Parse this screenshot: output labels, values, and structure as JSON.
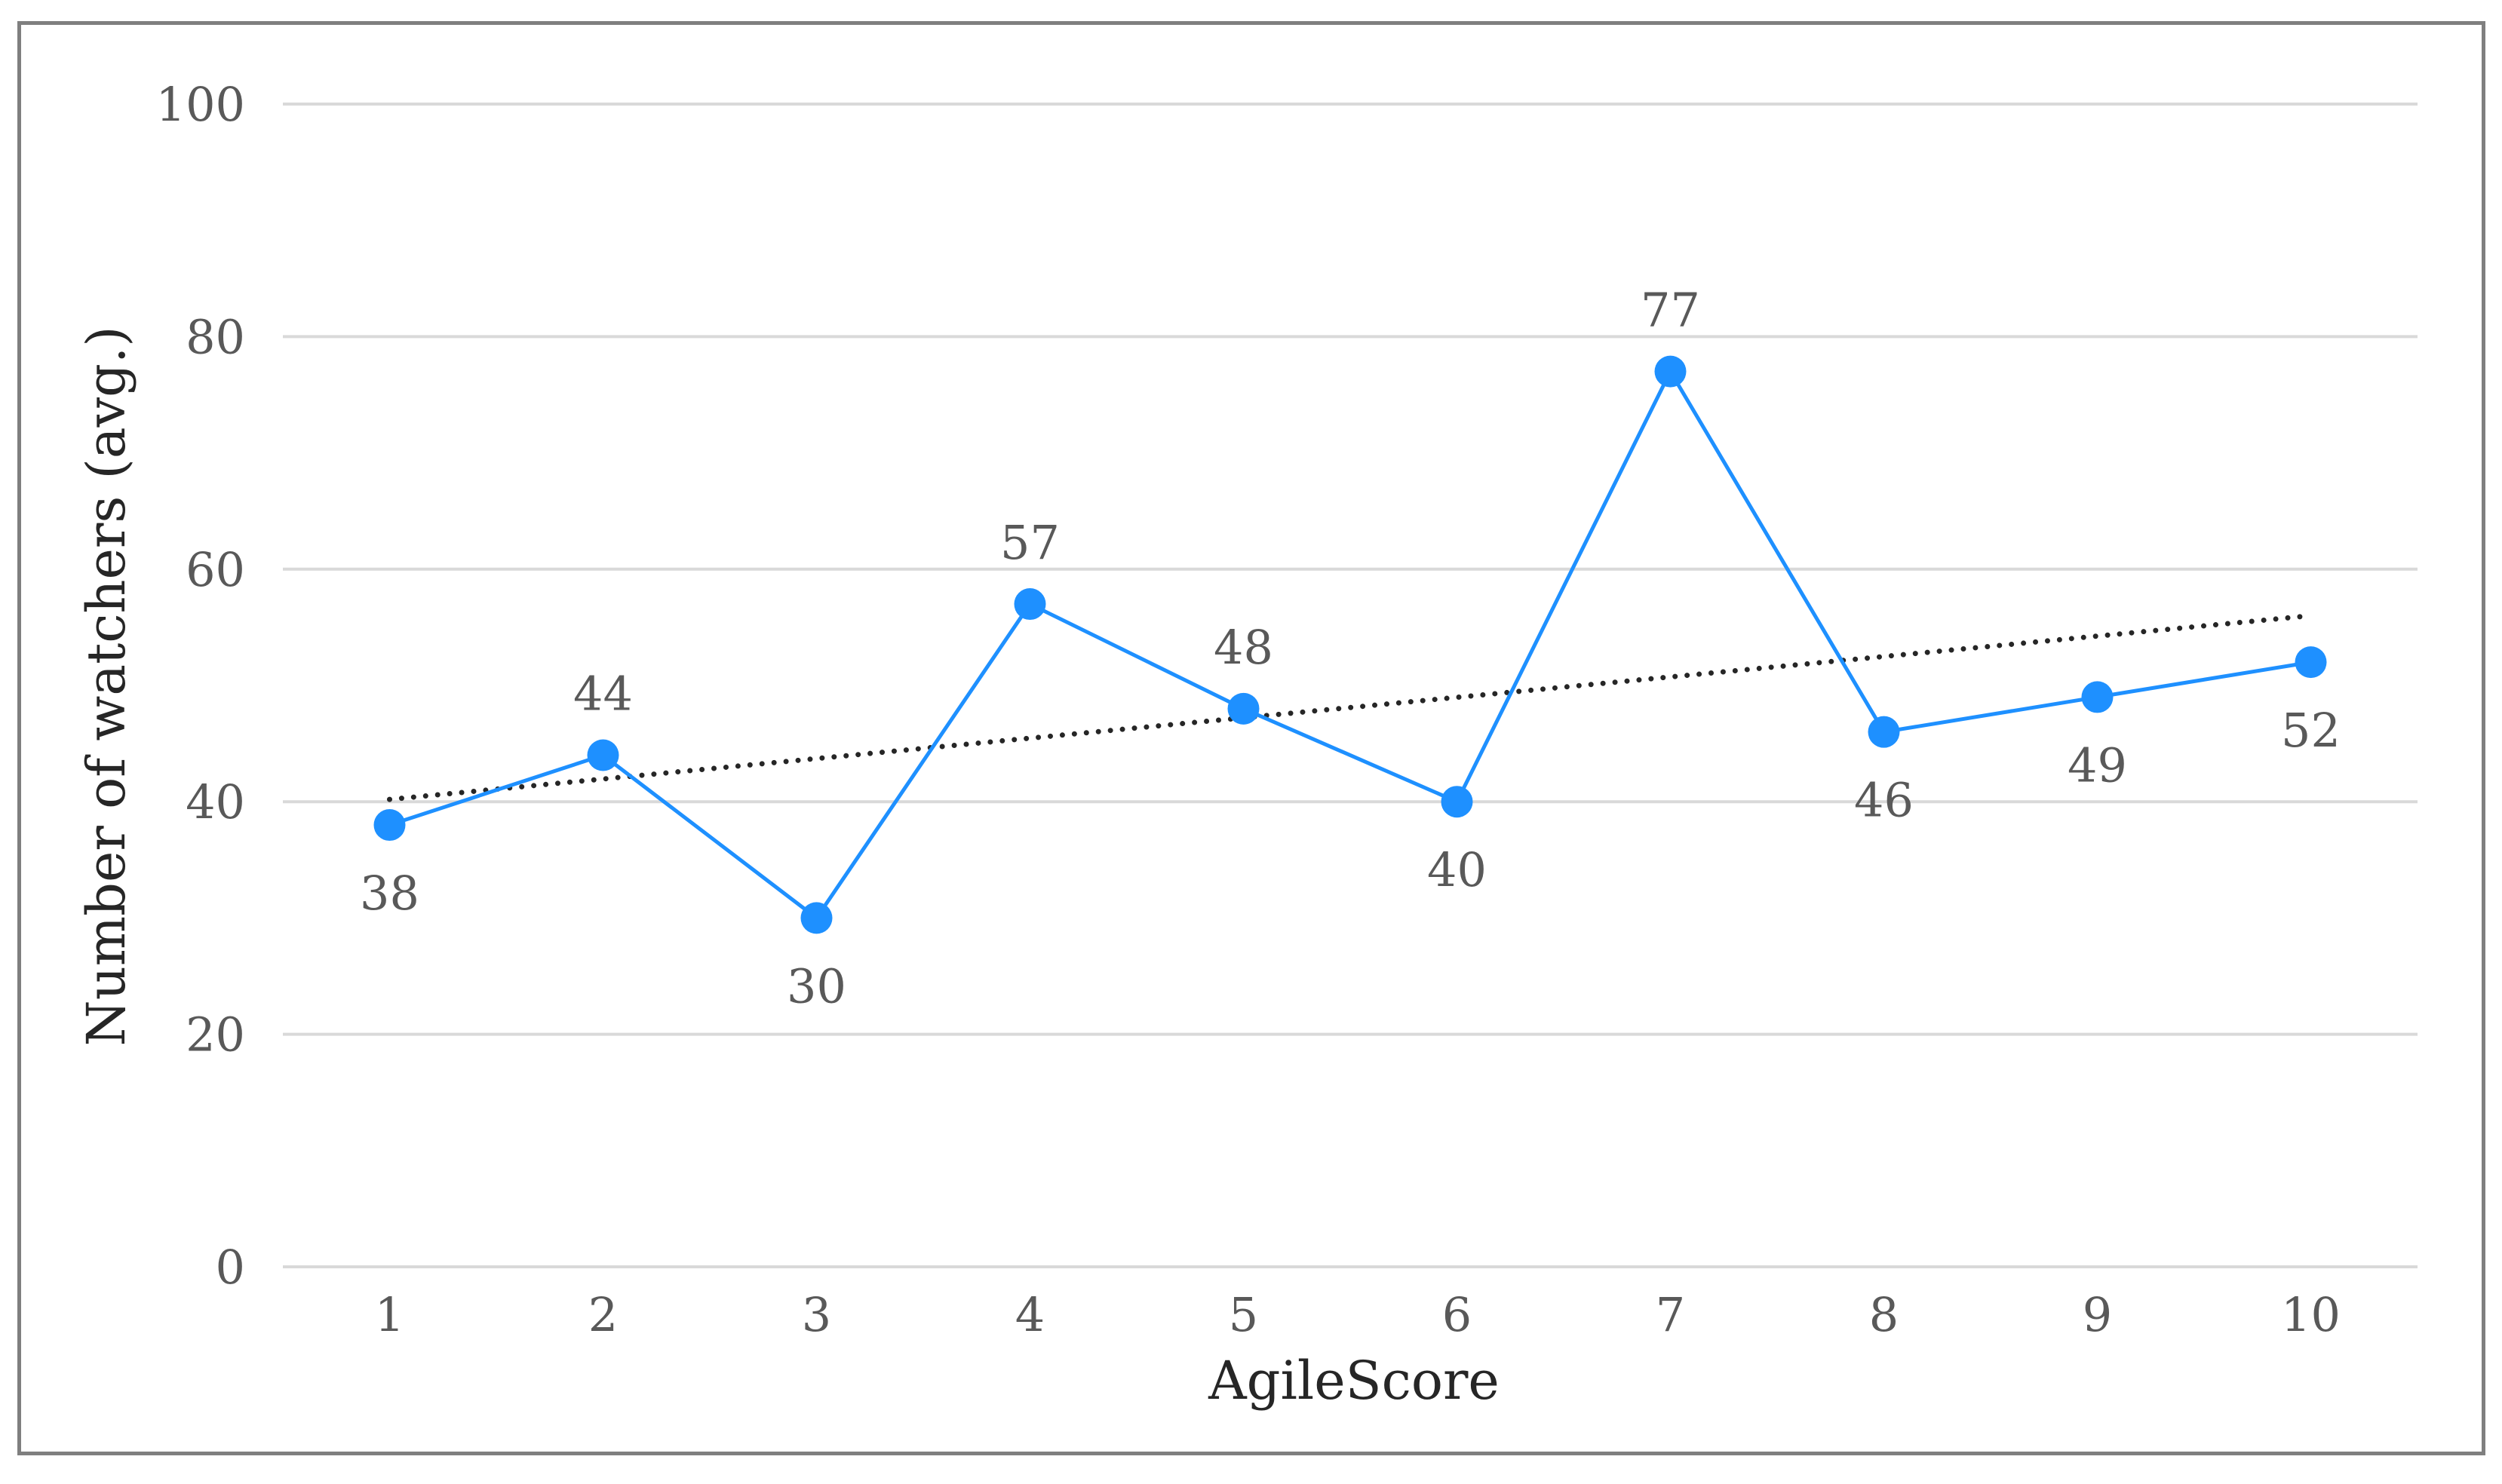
{
  "chart_data": {
    "type": "line",
    "xlabel": "AgileScore",
    "ylabel": "Number of watchers (avg.)",
    "categories": [
      "1",
      "2",
      "3",
      "4",
      "5",
      "6",
      "7",
      "8",
      "9",
      "10"
    ],
    "series": [
      {
        "values": [
          38,
          44,
          30,
          57,
          48,
          40,
          77,
          46,
          49,
          52
        ],
        "data_labels": [
          "38",
          "44",
          "30",
          "57",
          "48",
          "40",
          "77",
          "46",
          "49",
          "52"
        ],
        "color": "#1e90ff",
        "marker": "circle"
      }
    ],
    "trendline": {
      "type": "linear",
      "start": 40.2,
      "end": 56.0,
      "style": "dotted",
      "color": "#262626"
    },
    "ylim": [
      0,
      100
    ],
    "yticks": [
      "0",
      "20",
      "40",
      "60",
      "80",
      "100"
    ],
    "grid": "horizontal",
    "legend": "none",
    "colors": {
      "gridline": "#d9d9d9",
      "frame": "#7f7f7f",
      "text": "#595959"
    }
  }
}
